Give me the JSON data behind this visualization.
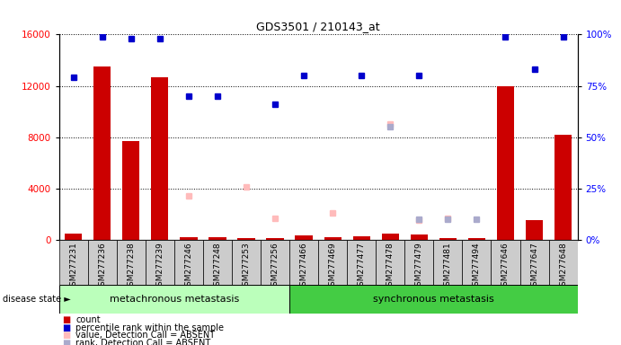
{
  "title": "GDS3501 / 210143_at",
  "samples": [
    "GSM277231",
    "GSM277236",
    "GSM277238",
    "GSM277239",
    "GSM277246",
    "GSM277248",
    "GSM277253",
    "GSM277256",
    "GSM277466",
    "GSM277469",
    "GSM277477",
    "GSM277478",
    "GSM277479",
    "GSM277481",
    "GSM277494",
    "GSM277646",
    "GSM277647",
    "GSM277648"
  ],
  "count_values": [
    500,
    13500,
    7700,
    12700,
    200,
    200,
    100,
    100,
    350,
    200,
    300,
    500,
    400,
    100,
    150,
    12000,
    1500,
    8200
  ],
  "percentile_values": [
    79,
    99,
    98,
    98,
    70,
    70,
    null,
    66,
    80,
    null,
    80,
    null,
    80,
    null,
    null,
    99,
    83,
    99
  ],
  "absent_value_values": [
    null,
    null,
    null,
    null,
    3400,
    null,
    4100,
    1700,
    null,
    2100,
    null,
    9000,
    1500,
    1700,
    null,
    null,
    null,
    null
  ],
  "absent_rank_pct": [
    null,
    null,
    null,
    null,
    null,
    null,
    null,
    null,
    null,
    null,
    null,
    55,
    10,
    10,
    10,
    null,
    null,
    null
  ],
  "group1_count": 8,
  "group2_count": 10,
  "group1_label": "metachronous metastasis",
  "group2_label": "synchronous metastasis",
  "disease_state_label": "disease state",
  "ylim_left": [
    0,
    16000
  ],
  "ylim_right": [
    0,
    100
  ],
  "yticks_left": [
    0,
    4000,
    8000,
    12000,
    16000
  ],
  "yticks_right": [
    0,
    25,
    50,
    75,
    100
  ],
  "ytick_labels_right": [
    "0%",
    "25%",
    "50%",
    "75%",
    "100%"
  ],
  "bar_color": "#cc0000",
  "percentile_color": "#0000cc",
  "absent_value_color": "#ffbbbb",
  "absent_rank_color": "#aaaacc",
  "group1_bg": "#bbffbb",
  "group2_bg": "#44cc44",
  "sample_box_color": "#cccccc",
  "legend_items": [
    {
      "label": "count",
      "color": "#cc0000"
    },
    {
      "label": "percentile rank within the sample",
      "color": "#0000cc"
    },
    {
      "label": "value, Detection Call = ABSENT",
      "color": "#ffbbbb"
    },
    {
      "label": "rank, Detection Call = ABSENT",
      "color": "#aaaacc"
    }
  ]
}
